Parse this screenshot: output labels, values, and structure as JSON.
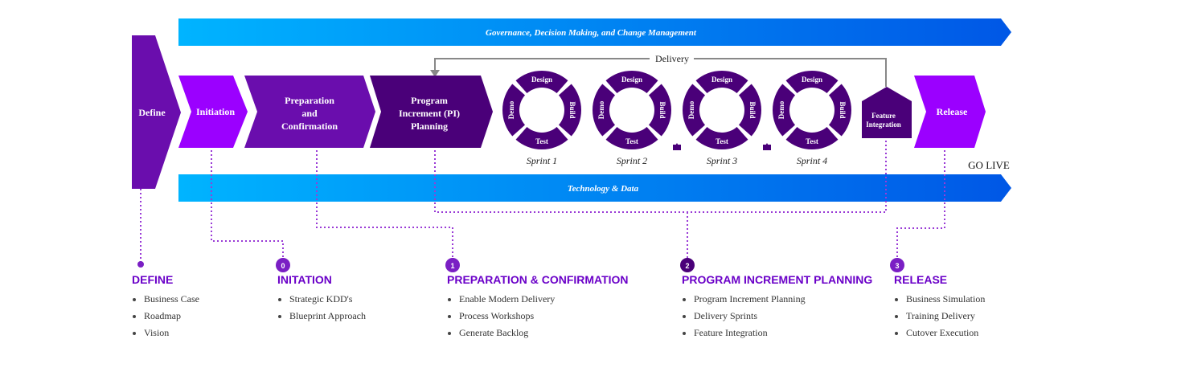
{
  "colors": {
    "band_start": "#00b4ff",
    "band_end": "#0057e6",
    "purple_dark": "#4a0079",
    "purple_mid": "#6a0dad",
    "purple_bright": "#9b00ff",
    "dot_line": "#9a3bd6",
    "arrow_gray": "#888888"
  },
  "bands": {
    "top": "Governance, Decision Making, and Change Management",
    "bottom": "Technology & Data"
  },
  "phases": {
    "define": "Define",
    "initiation": "Initiation",
    "preparation": [
      "Preparation",
      "and",
      "Confirmation"
    ],
    "pi_planning": [
      "Program",
      "Increment (PI)",
      "Planning"
    ],
    "feature": [
      "Feature",
      "Integration"
    ],
    "release": "Release"
  },
  "delivery_label": "Delivery",
  "go_live": "GO LIVE",
  "sprint_ring": {
    "top": "Design",
    "right": "Build",
    "bottom": "Test",
    "left": "Demo"
  },
  "sprints": [
    "Sprint 1",
    "Sprint 2",
    "Sprint 3",
    "Sprint 4"
  ],
  "markers": [
    "0",
    "1",
    "2",
    "3"
  ],
  "sections": [
    {
      "title": "DEFINE",
      "items": [
        "Business Case",
        "Roadmap",
        "Vision"
      ]
    },
    {
      "title": "INITATION",
      "items": [
        "Strategic KDD's",
        "Blueprint Approach"
      ]
    },
    {
      "title": "PREPARATION & CONFIRMATION",
      "items": [
        "Enable Modern Delivery",
        "Process Workshops",
        "Generate Backlog"
      ]
    },
    {
      "title": "PROGRAM INCREMENT PLANNING",
      "items": [
        "Program Increment Planning",
        "Delivery Sprints",
        "Feature Integration"
      ]
    },
    {
      "title": "RELEASE",
      "items": [
        "Business Simulation",
        "Training Delivery",
        "Cutover Execution"
      ]
    }
  ]
}
